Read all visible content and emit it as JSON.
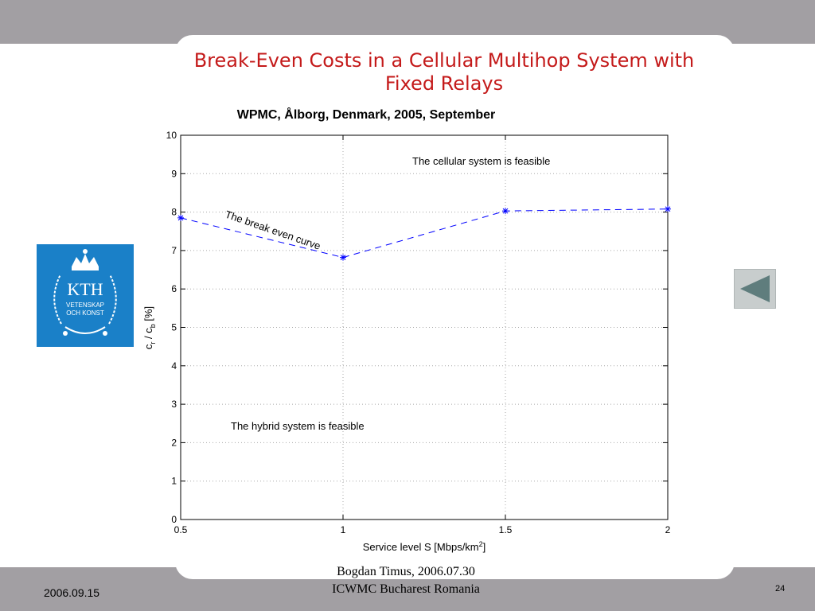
{
  "slide": {
    "title_line1": "Break-Even Costs in a Cellular Multihop System with",
    "title_line2": "Fixed Relays",
    "footer": {
      "presenter_line1": "Bogdan Timus,    2006.07.30",
      "presenter_line2": "ICWMC Bucharest Romania",
      "date": "2006.09.15",
      "page_number": "24"
    },
    "logo": {
      "text_main": "KTH",
      "text_line1": "VETENSKAP",
      "text_line2": "OCH KONST",
      "color": "#1a80c8"
    },
    "nav": {
      "icon": "back-arrow-icon"
    }
  },
  "chart_data": {
    "type": "line",
    "title": "WPMC, Ålborg, Denmark, 2005, September",
    "xlabel": "Service level S [Mbps/km",
    "xlabel_sup": "2",
    "xlabel_close": "]",
    "ylabel_c": "c",
    "ylabel_r": "r",
    "ylabel_slash": " / c",
    "ylabel_b": "b",
    "ylabel_pct": "  [%]",
    "xlim": [
      0.5,
      2
    ],
    "ylim": [
      0,
      10
    ],
    "x_ticks": [
      "0.5",
      "1",
      "1.5",
      "2"
    ],
    "y_ticks": [
      "0",
      "1",
      "2",
      "3",
      "4",
      "5",
      "6",
      "7",
      "8",
      "9",
      "10"
    ],
    "grid": true,
    "series": [
      {
        "x": [
          0.5,
          1.0,
          1.5,
          2.0
        ],
        "y": [
          7.85,
          6.82,
          8.03,
          8.08
        ],
        "color": "#0000ff",
        "line_style": "dashed",
        "marker": "*"
      }
    ],
    "annotations": {
      "cellular": "The cellular system is feasible",
      "break_even": "The break even curve",
      "hybrid": "The hybrid system is feasible"
    }
  }
}
